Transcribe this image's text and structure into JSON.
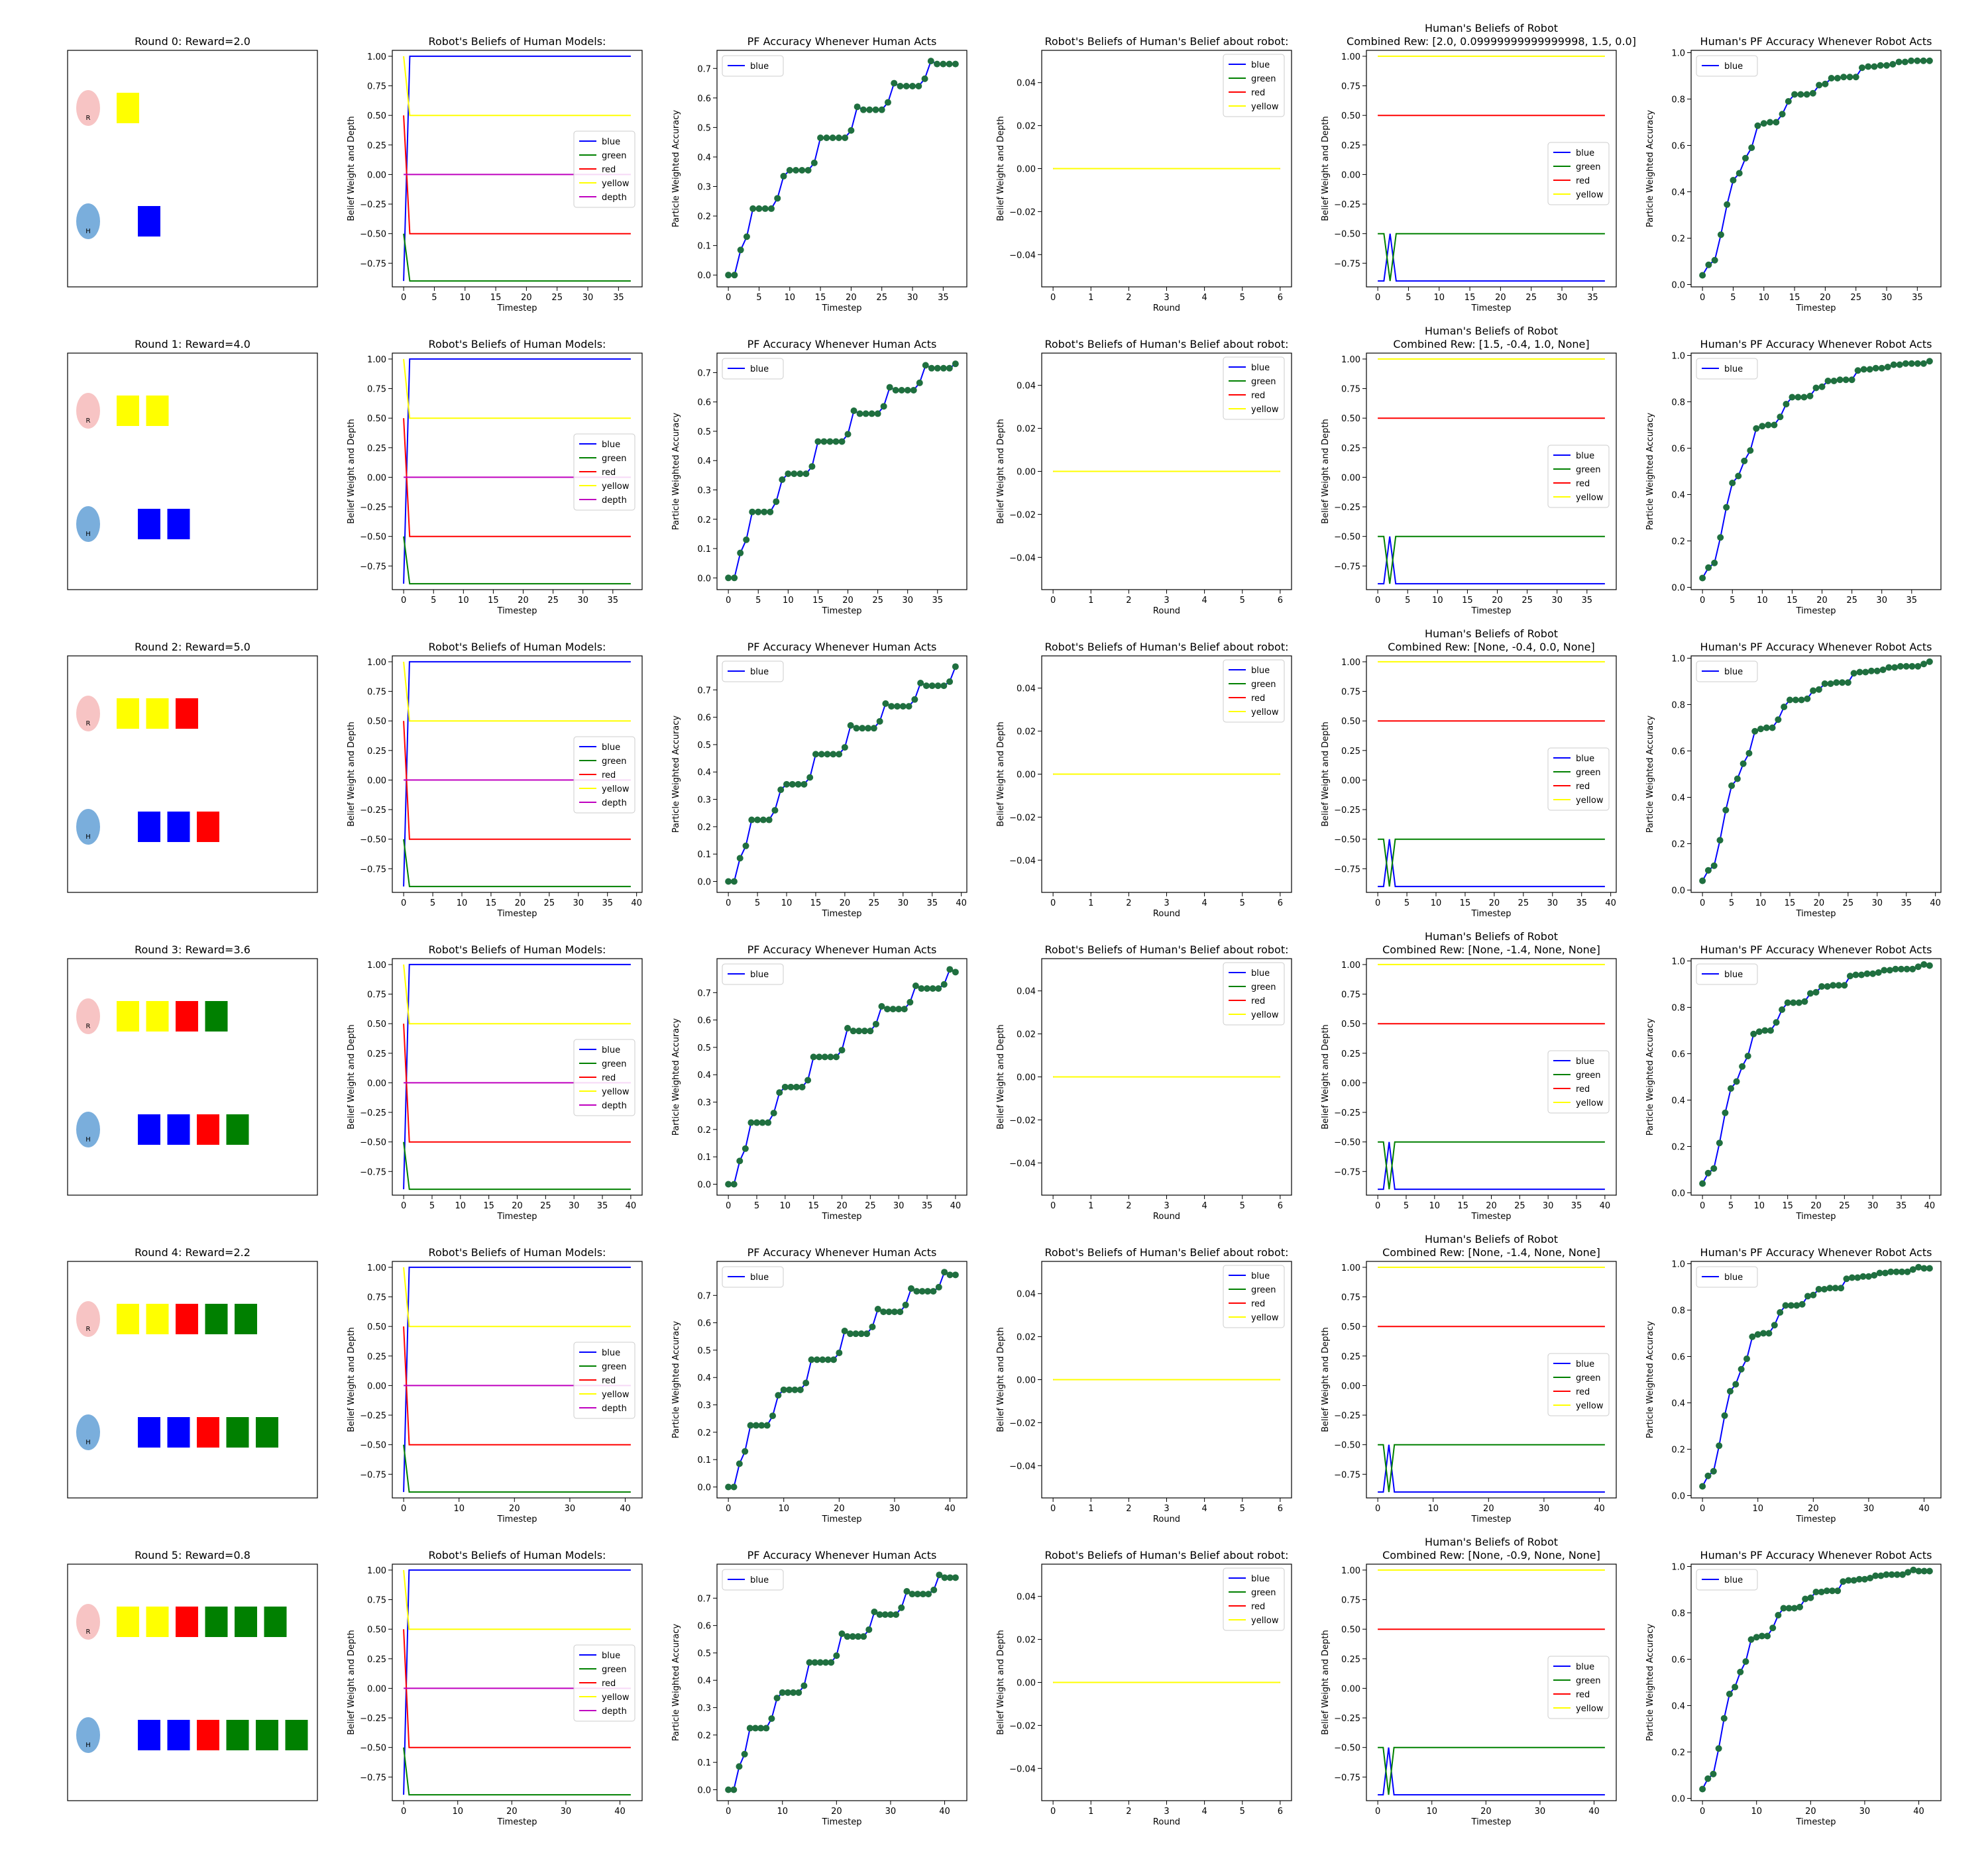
{
  "colors": {
    "blue": "#0000ff",
    "green": "#008000",
    "red": "#ff0000",
    "yellow": "#ffff00",
    "depth": "#bf00bf",
    "pf_line": "#0000ff",
    "pf_marker": "#1f6f3f",
    "robot_circle": "#f7c4c4",
    "human_circle": "#7aaedc",
    "block_yellow": "#ffff00",
    "block_red": "#ff0000",
    "block_blue": "#0000ff",
    "block_green": "#008000"
  },
  "rounds": [
    {
      "title": "Round 0: Reward=2.0",
      "scene": {
        "robot_label": "R",
        "human_label": "H",
        "robot_blocks": [
          "yellow"
        ],
        "human_blocks": [
          "blue"
        ]
      },
      "robot_beliefs_title": "Robot's Beliefs of Human Models:",
      "pf_human_title": "PF Accuracy Whenever Human Acts",
      "belief_about_robot_title": "Robot's Beliefs of Human's Belief about robot:",
      "human_beliefs_title": [
        "Human's Beliefs of Robot",
        "Combined Rew: [2.0, 0.09999999999999998, 1.5, 0.0]"
      ],
      "pf_robot_title": "Human's PF Accuracy Whenever Robot Acts",
      "tmax": 37,
      "xticks": [
        0,
        5,
        10,
        15,
        20,
        25,
        30,
        35
      ],
      "pf_human": [
        0.0,
        0.0,
        0.085,
        0.13,
        0.225,
        0.225,
        0.225,
        0.225,
        0.26,
        0.335,
        0.355,
        0.355,
        0.355,
        0.355,
        0.38,
        0.465,
        0.465,
        0.465,
        0.465,
        0.465,
        0.49,
        0.57,
        0.56,
        0.56,
        0.56,
        0.56,
        0.585,
        0.65,
        0.64,
        0.64,
        0.64,
        0.64,
        0.665,
        0.725,
        0.715,
        0.715,
        0.715,
        0.715
      ],
      "pf_robot": [
        0.04,
        0.085,
        0.105,
        0.215,
        0.345,
        0.45,
        0.48,
        0.545,
        0.59,
        0.685,
        0.695,
        0.7,
        0.7,
        0.735,
        0.79,
        0.82,
        0.82,
        0.82,
        0.825,
        0.86,
        0.865,
        0.89,
        0.89,
        0.895,
        0.895,
        0.895,
        0.935,
        0.94,
        0.94,
        0.945,
        0.945,
        0.95,
        0.96,
        0.96,
        0.965,
        0.965,
        0.965,
        0.965
      ]
    },
    {
      "title": "Round 1: Reward=4.0",
      "scene": {
        "robot_label": "R",
        "human_label": "H",
        "robot_blocks": [
          "yellow",
          "yellow"
        ],
        "human_blocks": [
          "blue",
          "blue"
        ]
      },
      "robot_beliefs_title": "Robot's Beliefs of Human Models:",
      "pf_human_title": "PF Accuracy Whenever Human Acts",
      "belief_about_robot_title": "Robot's Beliefs of Human's Belief about robot:",
      "human_beliefs_title": [
        "Human's Beliefs of Robot",
        "Combined Rew: [1.5, -0.4, 1.0, None]"
      ],
      "pf_robot_title": "Human's PF Accuracy Whenever Robot Acts",
      "tmax": 38,
      "xticks": [
        0,
        5,
        10,
        15,
        20,
        25,
        30,
        35
      ],
      "pf_human": [
        0.0,
        0.0,
        0.085,
        0.13,
        0.225,
        0.225,
        0.225,
        0.225,
        0.26,
        0.335,
        0.355,
        0.355,
        0.355,
        0.355,
        0.38,
        0.465,
        0.465,
        0.465,
        0.465,
        0.465,
        0.49,
        0.57,
        0.56,
        0.56,
        0.56,
        0.56,
        0.585,
        0.65,
        0.64,
        0.64,
        0.64,
        0.64,
        0.665,
        0.725,
        0.715,
        0.715,
        0.715,
        0.715,
        0.73
      ],
      "pf_robot": [
        0.04,
        0.085,
        0.105,
        0.215,
        0.345,
        0.45,
        0.48,
        0.545,
        0.59,
        0.685,
        0.695,
        0.7,
        0.7,
        0.735,
        0.79,
        0.82,
        0.82,
        0.82,
        0.825,
        0.86,
        0.865,
        0.89,
        0.89,
        0.895,
        0.895,
        0.895,
        0.935,
        0.94,
        0.94,
        0.945,
        0.945,
        0.95,
        0.96,
        0.96,
        0.965,
        0.965,
        0.965,
        0.965,
        0.975
      ]
    },
    {
      "title": "Round 2: Reward=5.0",
      "scene": {
        "robot_label": "R",
        "human_label": "H",
        "robot_blocks": [
          "yellow",
          "yellow",
          "red"
        ],
        "human_blocks": [
          "blue",
          "blue",
          "red"
        ]
      },
      "robot_beliefs_title": "Robot's Beliefs of Human Models:",
      "pf_human_title": "PF Accuracy Whenever Human Acts",
      "belief_about_robot_title": "Robot's Beliefs of Human's Belief about robot:",
      "human_beliefs_title": [
        "Human's Beliefs of Robot",
        "Combined Rew: [None, -0.4, 0.0, None]"
      ],
      "pf_robot_title": "Human's PF Accuracy Whenever Robot Acts",
      "tmax": 39,
      "xticks": [
        0,
        5,
        10,
        15,
        20,
        25,
        30,
        35,
        40
      ],
      "pf_human": [
        0.0,
        0.0,
        0.085,
        0.13,
        0.225,
        0.225,
        0.225,
        0.225,
        0.26,
        0.335,
        0.355,
        0.355,
        0.355,
        0.355,
        0.38,
        0.465,
        0.465,
        0.465,
        0.465,
        0.465,
        0.49,
        0.57,
        0.56,
        0.56,
        0.56,
        0.56,
        0.585,
        0.65,
        0.64,
        0.64,
        0.64,
        0.64,
        0.665,
        0.725,
        0.715,
        0.715,
        0.715,
        0.715,
        0.73,
        0.785
      ],
      "pf_robot": [
        0.04,
        0.085,
        0.105,
        0.215,
        0.345,
        0.45,
        0.48,
        0.545,
        0.59,
        0.685,
        0.695,
        0.7,
        0.7,
        0.735,
        0.79,
        0.82,
        0.82,
        0.82,
        0.825,
        0.86,
        0.865,
        0.89,
        0.89,
        0.895,
        0.895,
        0.895,
        0.935,
        0.94,
        0.94,
        0.945,
        0.945,
        0.95,
        0.96,
        0.96,
        0.965,
        0.965,
        0.965,
        0.965,
        0.975,
        0.985
      ]
    },
    {
      "title": "Round 3: Reward=3.6",
      "scene": {
        "robot_label": "R",
        "human_label": "H",
        "robot_blocks": [
          "yellow",
          "yellow",
          "red",
          "green"
        ],
        "human_blocks": [
          "blue",
          "blue",
          "red",
          "green"
        ]
      },
      "robot_beliefs_title": "Robot's Beliefs of Human Models:",
      "pf_human_title": "PF Accuracy Whenever Human Acts",
      "belief_about_robot_title": "Robot's Beliefs of Human's Belief about robot:",
      "human_beliefs_title": [
        "Human's Beliefs of Robot",
        "Combined Rew: [None, -1.4, None, None]"
      ],
      "pf_robot_title": "Human's PF Accuracy Whenever Robot Acts",
      "tmax": 40,
      "xticks": [
        0,
        5,
        10,
        15,
        20,
        25,
        30,
        35,
        40
      ],
      "pf_human": [
        0.0,
        0.0,
        0.085,
        0.13,
        0.225,
        0.225,
        0.225,
        0.225,
        0.26,
        0.335,
        0.355,
        0.355,
        0.355,
        0.355,
        0.38,
        0.465,
        0.465,
        0.465,
        0.465,
        0.465,
        0.49,
        0.57,
        0.56,
        0.56,
        0.56,
        0.56,
        0.585,
        0.65,
        0.64,
        0.64,
        0.64,
        0.64,
        0.665,
        0.725,
        0.715,
        0.715,
        0.715,
        0.715,
        0.73,
        0.785,
        0.775
      ],
      "pf_robot": [
        0.04,
        0.085,
        0.105,
        0.215,
        0.345,
        0.45,
        0.48,
        0.545,
        0.59,
        0.685,
        0.695,
        0.7,
        0.7,
        0.735,
        0.79,
        0.82,
        0.82,
        0.82,
        0.825,
        0.86,
        0.865,
        0.89,
        0.89,
        0.895,
        0.895,
        0.895,
        0.935,
        0.94,
        0.94,
        0.945,
        0.945,
        0.95,
        0.96,
        0.96,
        0.965,
        0.965,
        0.965,
        0.965,
        0.975,
        0.985,
        0.98
      ]
    },
    {
      "title": "Round 4: Reward=2.2",
      "scene": {
        "robot_label": "R",
        "human_label": "H",
        "robot_blocks": [
          "yellow",
          "yellow",
          "red",
          "green",
          "green"
        ],
        "human_blocks": [
          "blue",
          "blue",
          "red",
          "green",
          "green"
        ]
      },
      "robot_beliefs_title": "Robot's Beliefs of Human Models:",
      "pf_human_title": "PF Accuracy Whenever Human Acts",
      "belief_about_robot_title": "Robot's Beliefs of Human's Belief about robot:",
      "human_beliefs_title": [
        "Human's Beliefs of Robot",
        "Combined Rew: [None, -1.4, None, None]"
      ],
      "pf_robot_title": "Human's PF Accuracy Whenever Robot Acts",
      "tmax": 41,
      "xticks": [
        0,
        10,
        20,
        30,
        40
      ],
      "pf_human": [
        0.0,
        0.0,
        0.085,
        0.13,
        0.225,
        0.225,
        0.225,
        0.225,
        0.26,
        0.335,
        0.355,
        0.355,
        0.355,
        0.355,
        0.38,
        0.465,
        0.465,
        0.465,
        0.465,
        0.465,
        0.49,
        0.57,
        0.56,
        0.56,
        0.56,
        0.56,
        0.585,
        0.65,
        0.64,
        0.64,
        0.64,
        0.64,
        0.665,
        0.725,
        0.715,
        0.715,
        0.715,
        0.715,
        0.73,
        0.785,
        0.775,
        0.775
      ],
      "pf_robot": [
        0.04,
        0.085,
        0.105,
        0.215,
        0.345,
        0.45,
        0.48,
        0.545,
        0.59,
        0.685,
        0.695,
        0.7,
        0.7,
        0.735,
        0.79,
        0.82,
        0.82,
        0.82,
        0.825,
        0.86,
        0.865,
        0.89,
        0.89,
        0.895,
        0.895,
        0.895,
        0.935,
        0.94,
        0.94,
        0.945,
        0.945,
        0.95,
        0.96,
        0.96,
        0.965,
        0.965,
        0.965,
        0.965,
        0.975,
        0.985,
        0.98,
        0.98
      ]
    },
    {
      "title": "Round 5: Reward=0.8",
      "scene": {
        "robot_label": "R",
        "human_label": "H",
        "robot_blocks": [
          "yellow",
          "yellow",
          "red",
          "green",
          "green",
          "green"
        ],
        "human_blocks": [
          "blue",
          "blue",
          "red",
          "green",
          "green",
          "green"
        ]
      },
      "robot_beliefs_title": "Robot's Beliefs of Human Models:",
      "pf_human_title": "PF Accuracy Whenever Human Acts",
      "belief_about_robot_title": "Robot's Beliefs of Human's Belief about robot:",
      "human_beliefs_title": [
        "Human's Beliefs of Robot",
        "Combined Rew: [None, -0.9, None, None]"
      ],
      "pf_robot_title": "Human's PF Accuracy Whenever Robot Acts",
      "tmax": 42,
      "xticks": [
        0,
        10,
        20,
        30,
        40
      ],
      "pf_human": [
        0.0,
        0.0,
        0.085,
        0.13,
        0.225,
        0.225,
        0.225,
        0.225,
        0.26,
        0.335,
        0.355,
        0.355,
        0.355,
        0.355,
        0.38,
        0.465,
        0.465,
        0.465,
        0.465,
        0.465,
        0.49,
        0.57,
        0.56,
        0.56,
        0.56,
        0.56,
        0.585,
        0.65,
        0.64,
        0.64,
        0.64,
        0.64,
        0.665,
        0.725,
        0.715,
        0.715,
        0.715,
        0.715,
        0.73,
        0.785,
        0.775,
        0.775,
        0.775
      ],
      "pf_robot": [
        0.04,
        0.085,
        0.105,
        0.215,
        0.345,
        0.45,
        0.48,
        0.545,
        0.59,
        0.685,
        0.695,
        0.7,
        0.7,
        0.735,
        0.79,
        0.82,
        0.82,
        0.82,
        0.825,
        0.86,
        0.865,
        0.89,
        0.89,
        0.895,
        0.895,
        0.895,
        0.935,
        0.94,
        0.94,
        0.945,
        0.945,
        0.95,
        0.96,
        0.96,
        0.965,
        0.965,
        0.965,
        0.965,
        0.975,
        0.985,
        0.98,
        0.98,
        0.98
      ]
    }
  ],
  "chart_data": [
    {
      "type": "line",
      "title": "Robot's Beliefs of Human Models:",
      "xlabel": "Timestep",
      "ylabel": "Belief Weight and Depth",
      "ylim": [
        -0.95,
        1.05
      ],
      "yticks": [
        1.0,
        0.75,
        0.5,
        0.25,
        0.0,
        -0.25,
        -0.5,
        -0.75
      ],
      "legend": "center-right",
      "series": [
        {
          "name": "blue",
          "x": [
            0,
            1,
            37
          ],
          "values": [
            -0.9,
            1.0,
            1.0
          ]
        },
        {
          "name": "green",
          "x": [
            0,
            1,
            37
          ],
          "values": [
            -0.5,
            -0.9,
            -0.9
          ]
        },
        {
          "name": "red",
          "x": [
            0,
            1,
            37
          ],
          "values": [
            0.5,
            -0.5,
            -0.5
          ]
        },
        {
          "name": "yellow",
          "x": [
            0,
            1,
            37
          ],
          "values": [
            1.0,
            0.5,
            0.5
          ]
        },
        {
          "name": "depth",
          "x": [
            0,
            1,
            37
          ],
          "values": [
            0.0,
            0.0,
            0.0
          ]
        }
      ]
    },
    {
      "type": "line",
      "title": "PF Accuracy Whenever Human Acts",
      "xlabel": "Timestep",
      "ylabel": "Particle Weighted Accuracy",
      "legend": "upper-left",
      "series": [
        {
          "name": "blue",
          "source": "rounds[].pf_human"
        }
      ]
    },
    {
      "type": "line",
      "title": "Robot's Beliefs of Human's Belief about robot:",
      "xlabel": "Round",
      "ylabel": "Belief Weight and Depth",
      "xlim": [
        0,
        6
      ],
      "xticks": [
        0,
        1,
        2,
        3,
        4,
        5,
        6
      ],
      "ylim": [
        -0.055,
        0.055
      ],
      "yticks": [
        0.04,
        0.02,
        0.0,
        -0.02,
        -0.04
      ],
      "yticklabels": [
        "0.04",
        "0.02",
        "0.00",
        "−0.02",
        "−0.04"
      ],
      "legend": "upper-right",
      "series": [
        {
          "name": "blue",
          "x": [
            0,
            6
          ],
          "values": [
            0.0,
            0.0
          ]
        },
        {
          "name": "green",
          "x": [
            0,
            6
          ],
          "values": [
            0.0,
            0.0
          ]
        },
        {
          "name": "red",
          "x": [
            0,
            6
          ],
          "values": [
            0.0,
            0.0
          ]
        },
        {
          "name": "yellow",
          "x": [
            0,
            6
          ],
          "values": [
            0.0,
            0.0
          ]
        }
      ]
    },
    {
      "type": "line",
      "title": "Human's Beliefs of Robot",
      "xlabel": "Timestep",
      "ylabel": "Belief Weight and Depth",
      "ylim": [
        -0.95,
        1.05
      ],
      "yticks": [
        1.0,
        0.75,
        0.5,
        0.25,
        0.0,
        -0.25,
        -0.5,
        -0.75
      ],
      "legend": "lower-right",
      "series": [
        {
          "name": "blue",
          "x": [
            0,
            1,
            2,
            3,
            37
          ],
          "values": [
            -0.9,
            -0.9,
            -0.5,
            -0.9,
            -0.9
          ]
        },
        {
          "name": "green",
          "x": [
            0,
            1,
            2,
            3,
            37
          ],
          "values": [
            -0.5,
            -0.5,
            -0.9,
            -0.5,
            -0.5
          ]
        },
        {
          "name": "red",
          "x": [
            0,
            37
          ],
          "values": [
            0.5,
            0.5
          ]
        },
        {
          "name": "yellow",
          "x": [
            0,
            37
          ],
          "values": [
            1.0,
            1.0
          ]
        }
      ]
    },
    {
      "type": "line",
      "title": "Human's PF Accuracy Whenever Robot Acts",
      "xlabel": "Timestep",
      "ylabel": "Particle Weighted Accuracy",
      "ylim": [
        -0.01,
        1.01
      ],
      "yticks": [
        0.0,
        0.2,
        0.4,
        0.6,
        0.8,
        1.0
      ],
      "legend": "upper-left",
      "series": [
        {
          "name": "blue",
          "source": "rounds[].pf_robot"
        }
      ]
    }
  ]
}
